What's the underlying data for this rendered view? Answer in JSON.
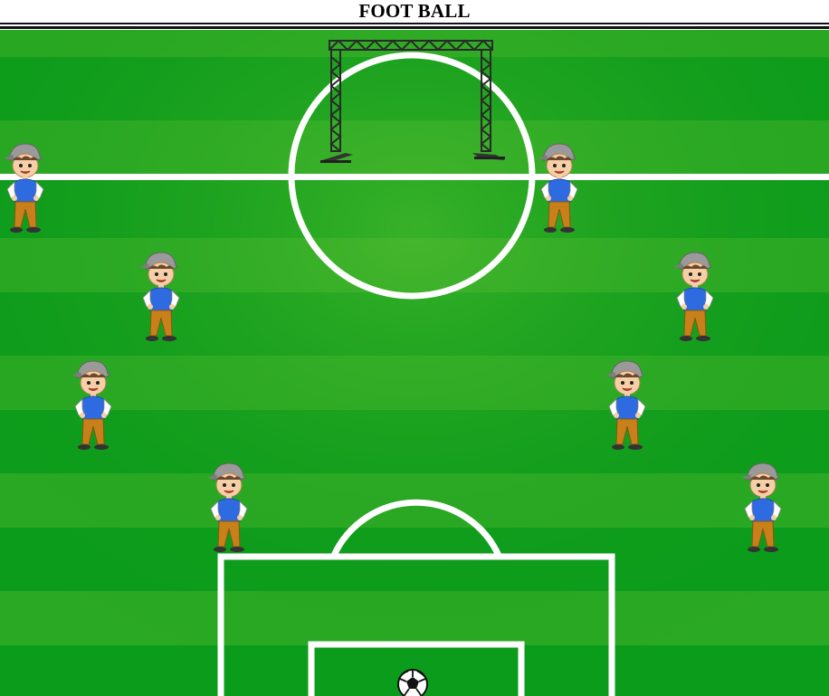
{
  "header": {
    "title": "FOOT BALL"
  },
  "colors": {
    "grass_dark": "#0a9a1a",
    "grass_light": "#3fb32a",
    "line": "#ffffff",
    "shirt": "#2f6be0",
    "pants": "#c8811a",
    "cap": "#9a9a9a"
  },
  "field": {
    "players": [
      {
        "name": "player-1",
        "icon": "boy-player-icon"
      },
      {
        "name": "player-2",
        "icon": "boy-player-icon"
      },
      {
        "name": "player-3",
        "icon": "boy-player-icon"
      },
      {
        "name": "player-4",
        "icon": "boy-player-icon"
      },
      {
        "name": "player-5",
        "icon": "boy-player-icon"
      },
      {
        "name": "player-6",
        "icon": "boy-player-icon"
      },
      {
        "name": "player-7",
        "icon": "boy-player-icon"
      },
      {
        "name": "player-8",
        "icon": "boy-player-icon"
      }
    ],
    "goal_icon": "goal-post-icon",
    "ball_icon": "soccer-ball-icon"
  }
}
